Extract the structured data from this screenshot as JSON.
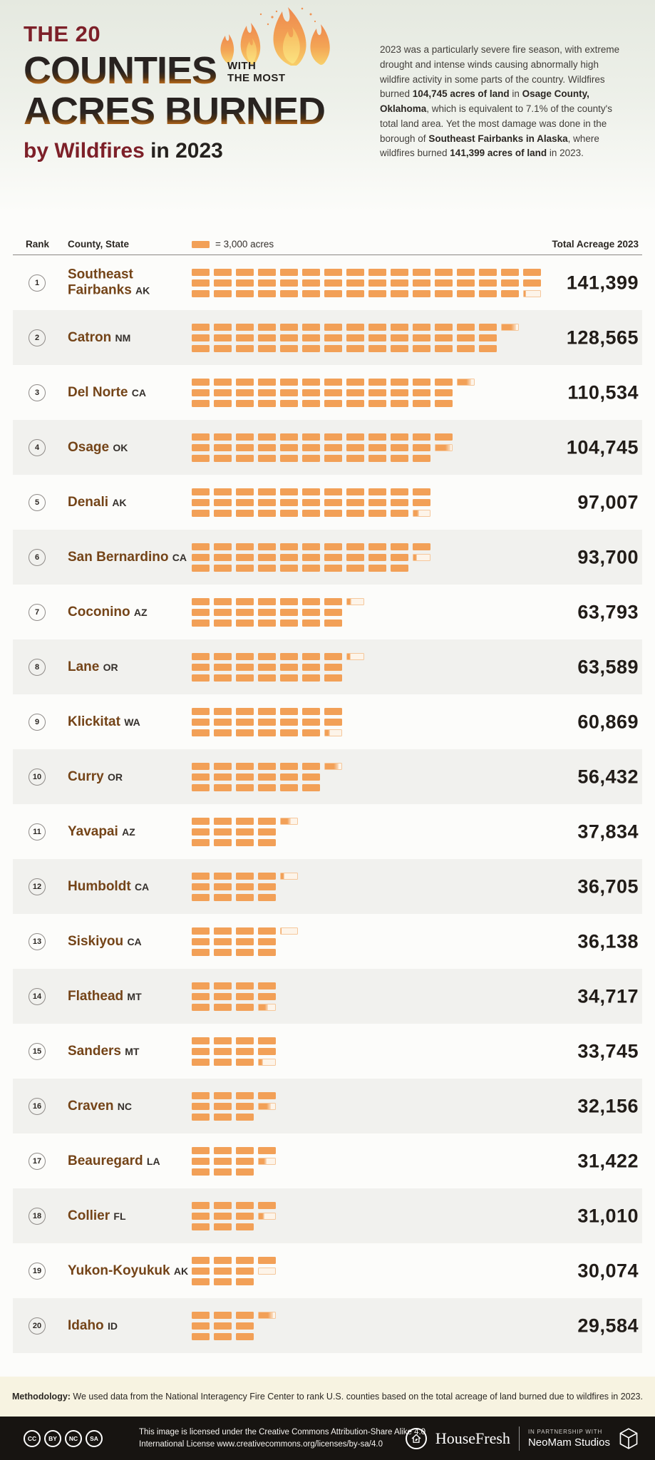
{
  "header": {
    "title_line1": "THE 20",
    "title_big1": "COUNTIES",
    "title_side1": "WITH",
    "title_side2": "THE MOST",
    "title_big2": "ACRES BURNED",
    "subtitle_accent": "by Wildfires",
    "subtitle_rest": " in 2023",
    "intro_segments": [
      {
        "text": "2023 was a particularly severe fire season, with extreme drought and intense winds causing abnormally high wildfire activity in some parts of the country. Wildfires burned ",
        "bold": false
      },
      {
        "text": "104,745 acres of land",
        "bold": true
      },
      {
        "text": " in ",
        "bold": false
      },
      {
        "text": "Osage County, Oklahoma",
        "bold": true
      },
      {
        "text": ", which is equivalent to 7.1% of the county's total land area. Yet the most damage was done in the borough of ",
        "bold": false
      },
      {
        "text": "Southeast Fairbanks in Alaska",
        "bold": true
      },
      {
        "text": ", where wildfires burned ",
        "bold": false
      },
      {
        "text": "141,399 acres of land",
        "bold": true
      },
      {
        "text": " in 2023.",
        "bold": false
      }
    ]
  },
  "table": {
    "col_rank": "Rank",
    "col_county": "County, State",
    "legend_label": "= 3,000 acres",
    "col_total": "Total Acreage 2023",
    "acres_per_block": 3000
  },
  "rows": [
    {
      "rank": "1",
      "county": "Southeast Fairbanks",
      "state": "AK",
      "value": "141,399",
      "acres": 141399
    },
    {
      "rank": "2",
      "county": "Catron",
      "state": "NM",
      "value": "128,565",
      "acres": 128565
    },
    {
      "rank": "3",
      "county": "Del Norte",
      "state": "CA",
      "value": "110,534",
      "acres": 110534
    },
    {
      "rank": "4",
      "county": "Osage",
      "state": "OK",
      "value": "104,745",
      "acres": 104745
    },
    {
      "rank": "5",
      "county": "Denali",
      "state": "AK",
      "value": "97,007",
      "acres": 97007
    },
    {
      "rank": "6",
      "county": "San Bernardino",
      "state": "CA",
      "value": "93,700",
      "acres": 93700
    },
    {
      "rank": "7",
      "county": "Coconino",
      "state": "AZ",
      "value": "63,793",
      "acres": 63793
    },
    {
      "rank": "8",
      "county": "Lane",
      "state": "OR",
      "value": "63,589",
      "acres": 63589
    },
    {
      "rank": "9",
      "county": "Klickitat",
      "state": "WA",
      "value": "60,869",
      "acres": 60869
    },
    {
      "rank": "10",
      "county": "Curry",
      "state": "OR",
      "value": "56,432",
      "acres": 56432
    },
    {
      "rank": "11",
      "county": "Yavapai",
      "state": "AZ",
      "value": "37,834",
      "acres": 37834
    },
    {
      "rank": "12",
      "county": "Humboldt",
      "state": "CA",
      "value": "36,705",
      "acres": 36705
    },
    {
      "rank": "13",
      "county": "Siskiyou",
      "state": "CA",
      "value": "36,138",
      "acres": 36138
    },
    {
      "rank": "14",
      "county": "Flathead",
      "state": "MT",
      "value": "34,717",
      "acres": 34717
    },
    {
      "rank": "15",
      "county": "Sanders",
      "state": "MT",
      "value": "33,745",
      "acres": 33745
    },
    {
      "rank": "16",
      "county": "Craven",
      "state": "NC",
      "value": "32,156",
      "acres": 32156
    },
    {
      "rank": "17",
      "county": "Beauregard",
      "state": "LA",
      "value": "31,422",
      "acres": 31422
    },
    {
      "rank": "18",
      "county": "Collier",
      "state": "FL",
      "value": "31,010",
      "acres": 31010
    },
    {
      "rank": "19",
      "county": "Yukon-Koyukuk",
      "state": "AK",
      "value": "30,074",
      "acres": 30074
    },
    {
      "rank": "20",
      "county": "Idaho",
      "state": "ID",
      "value": "29,584",
      "acres": 29584
    }
  ],
  "chart_data": {
    "type": "bar",
    "title": "The 20 Counties with the Most Acres Burned by Wildfires in 2023",
    "unit": "acres",
    "block_value": 3000,
    "legend": "1 block = 3,000 acres",
    "categories": [
      "Southeast Fairbanks, AK",
      "Catron, NM",
      "Del Norte, CA",
      "Osage, OK",
      "Denali, AK",
      "San Bernardino, CA",
      "Coconino, AZ",
      "Lane, OR",
      "Klickitat, WA",
      "Curry, OR",
      "Yavapai, AZ",
      "Humboldt, CA",
      "Siskiyou, CA",
      "Flathead, MT",
      "Sanders, MT",
      "Craven, NC",
      "Beauregard, LA",
      "Collier, FL",
      "Yukon-Koyukuk, AK",
      "Idaho, ID"
    ],
    "values": [
      141399,
      128565,
      110534,
      104745,
      97007,
      93700,
      63793,
      63589,
      60869,
      56432,
      37834,
      36705,
      36138,
      34717,
      33745,
      32156,
      31422,
      31010,
      30074,
      29584
    ],
    "xlabel": "",
    "ylabel": "Total Acreage 2023"
  },
  "footer": {
    "methodology_label": "Methodology:",
    "methodology_text": " We used data from the National Interagency Fire Center to rank U.S. counties based on the total acreage of land burned due to wildfires in 2023.",
    "cc_badges": [
      "CC",
      "BY",
      "NC",
      "SA"
    ],
    "license_line1": "This image is licensed under the Creative Commons Attribution-Share Alike 4.0",
    "license_line2": "International License www.creativecommons.org/licenses/by-sa/4.0",
    "brand": "HouseFresh",
    "partnership_label": "IN PARTNERSHIP WITH",
    "partner": "NeoMam Studios"
  },
  "colors": {
    "block_orange": "#f2a057",
    "county_brown": "#744418",
    "title_maroon": "#7d2029",
    "text_dark": "#25211e",
    "row_alt": "#f1f1ee",
    "methodology_bg": "#f7f3e1",
    "footer_bg": "#171411"
  }
}
